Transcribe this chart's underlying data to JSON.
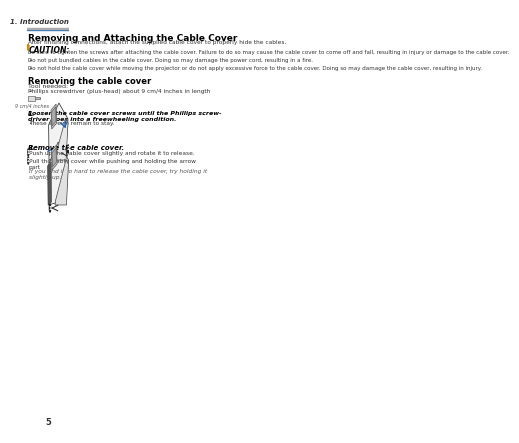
{
  "page_number": "5",
  "header_right": "1. Introduction",
  "header_line_color": "#2e75b6",
  "background_color": "#ffffff",
  "title": "Removing and Attaching the Cable Cover",
  "subtitle": "After finishing connections, attach the supplied cable cover to properly hide the cables.",
  "caution_title": "CAUTION:",
  "caution_bullets": [
    "Be sure to tighten the screws after attaching the cable cover. Failure to do so may cause the cable cover to come off and fall, resulting in injury or damage to the cable cover.",
    "Do not put bundled cables in the cable cover. Doing so may damage the power cord, resulting in a fire.",
    "Do not hold the cable cover while moving the projector or do not apply excessive force to the cable cover. Doing so may damage the cable cover, resulting in injury."
  ],
  "section_title": "Removing the cable cover",
  "tool_label": "Tool needed:",
  "tool_bullet": "Phillips screwdriver (plus-head) about 9 cm/4 inches in length",
  "screwdriver_label": "9 cm/4 inches",
  "step1_num": "1.",
  "step1_text": "Loosen the cable cover screws until the Phillips screw-\ndriver goes into a freewheeling condition.",
  "step1_bullet": "These screws remain to stay.",
  "step2_num": "2.",
  "step2_text": "Remove the cable cover.",
  "step2_sub1": "Push up the cable cover slightly and rotate it to release.",
  "step2_sub2": "Pull the cable cover while pushing and holding the arrow\npart",
  "step2_note": "If you find it to hard to release the cable cover, try holding it\nslightly up."
}
